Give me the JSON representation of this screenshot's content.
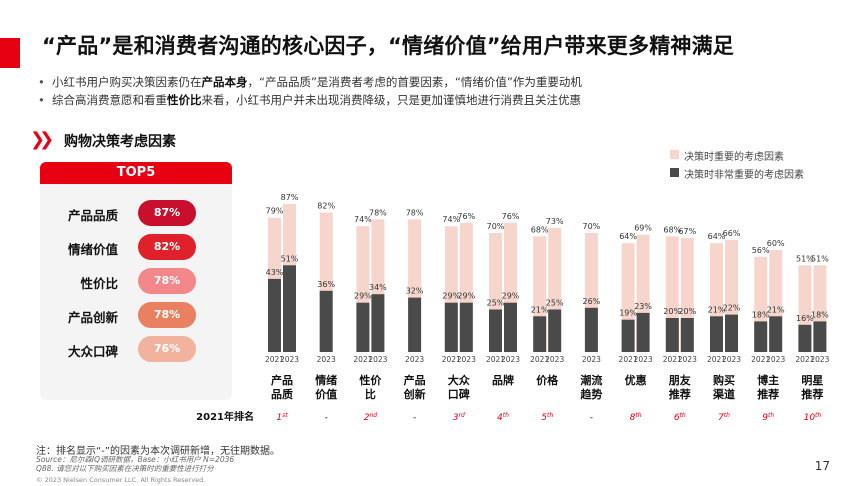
{
  "title": "“产品”是和消费者沟通的核心因子，“情绪价值”给用户带来更多精神满足",
  "bullets": [
    {
      "pre": "小红书用户购买决策因素仍在",
      "bold": "产品本身",
      "post": "，“产品品质”是消费者考虑的首要因素，“情绪价值”作为重要动机"
    },
    {
      "pre": "综合高消费意愿和看重",
      "bold": "性价比",
      "post": "来看，小红书用户并未出现消费降级，只是更加谨慎地进行消费且关注优惠"
    }
  ],
  "section_title": "购物决策考虑因素",
  "top5": {
    "header": "TOP5",
    "items": [
      {
        "label": "产品品质",
        "value": "87%",
        "color": "#c8102e"
      },
      {
        "label": "情绪价值",
        "value": "82%",
        "color": "#e0202a"
      },
      {
        "label": "性价比",
        "value": "78%",
        "color": "#f4878a"
      },
      {
        "label": "产品创新",
        "value": "78%",
        "color": "#e9805f"
      },
      {
        "label": "大众口碑",
        "value": "76%",
        "color": "#f2b39e"
      }
    ]
  },
  "legend": [
    {
      "label": "决策时重要的考虑因素",
      "color": "#f6d6cc"
    },
    {
      "label": "决策时非常重要的考虑因素",
      "color": "#4a4a4a"
    }
  ],
  "rank_row_label": "2021年排名",
  "footnotes": {
    "note": "注：排名显示“-”的因素为本次调研新增，无往期数据。",
    "source": "Source：尼尔森IQ调研数据，Base：小红书用户 N=2036",
    "q": "Q88. 请您对以下购买因素在决策时的重要性进行打分",
    "copyright": "© 2023 Nielsen Consumer LLC. All Rights Reserved."
  },
  "page_number": "17",
  "chart_data": {
    "type": "bar",
    "ylim": [
      0,
      100
    ],
    "series": [
      {
        "name": "决策时重要的考虑因素",
        "color": "#f6d6cc"
      },
      {
        "name": "决策时非常重要的考虑因素",
        "color": "#4a4a4a"
      }
    ],
    "categories": [
      {
        "label": [
          "产品",
          "品质"
        ],
        "rank": "1",
        "rank_suffix": "st",
        "bars": [
          {
            "year": "2021",
            "important": 79,
            "very": 43
          },
          {
            "year": "2023",
            "important": 87,
            "very": 51
          }
        ]
      },
      {
        "label": [
          "情绪",
          "价值"
        ],
        "rank": "-",
        "rank_suffix": "",
        "bars": [
          {
            "year": "2023",
            "important": 82,
            "very": 36
          }
        ]
      },
      {
        "label": [
          "性价",
          "比"
        ],
        "rank": "2",
        "rank_suffix": "nd",
        "bars": [
          {
            "year": "2021",
            "important": 74,
            "very": 29
          },
          {
            "year": "2023",
            "important": 78,
            "very": 34
          }
        ]
      },
      {
        "label": [
          "产品",
          "创新"
        ],
        "rank": "-",
        "rank_suffix": "",
        "bars": [
          {
            "year": "2023",
            "important": 78,
            "very": 32
          }
        ]
      },
      {
        "label": [
          "大众",
          "口碑"
        ],
        "rank": "3",
        "rank_suffix": "rd",
        "bars": [
          {
            "year": "2021",
            "important": 74,
            "very": 29
          },
          {
            "year": "2023",
            "important": 76,
            "very": 29
          }
        ]
      },
      {
        "label": [
          "品牌"
        ],
        "rank": "4",
        "rank_suffix": "th",
        "bars": [
          {
            "year": "2021",
            "important": 70,
            "very": 25
          },
          {
            "year": "2023",
            "important": 76,
            "very": 29
          }
        ]
      },
      {
        "label": [
          "价格"
        ],
        "rank": "5",
        "rank_suffix": "th",
        "bars": [
          {
            "year": "2021",
            "important": 68,
            "very": 21
          },
          {
            "year": "2023",
            "important": 73,
            "very": 25
          }
        ]
      },
      {
        "label": [
          "潮流",
          "趋势"
        ],
        "rank": "-",
        "rank_suffix": "",
        "bars": [
          {
            "year": "2023",
            "important": 70,
            "very": 26
          }
        ]
      },
      {
        "label": [
          "优惠"
        ],
        "rank": "8",
        "rank_suffix": "th",
        "bars": [
          {
            "year": "2021",
            "important": 64,
            "very": 19
          },
          {
            "year": "2023",
            "important": 69,
            "very": 23
          }
        ]
      },
      {
        "label": [
          "朋友",
          "推荐"
        ],
        "rank": "6",
        "rank_suffix": "th",
        "bars": [
          {
            "year": "2021",
            "important": 68,
            "very": 20
          },
          {
            "year": "2023",
            "important": 67,
            "very": 20
          }
        ]
      },
      {
        "label": [
          "购买",
          "渠道"
        ],
        "rank": "7",
        "rank_suffix": "th",
        "bars": [
          {
            "year": "2021",
            "important": 64,
            "very": 21
          },
          {
            "year": "2023",
            "important": 66,
            "very": 22
          }
        ]
      },
      {
        "label": [
          "博主",
          "推荐"
        ],
        "rank": "9",
        "rank_suffix": "th",
        "bars": [
          {
            "year": "2021",
            "important": 56,
            "very": 18
          },
          {
            "year": "2023",
            "important": 60,
            "very": 21
          }
        ]
      },
      {
        "label": [
          "明星",
          "推荐"
        ],
        "rank": "10",
        "rank_suffix": "th",
        "bars": [
          {
            "year": "2021",
            "important": 51,
            "very": 16
          },
          {
            "year": "2023",
            "important": 51,
            "very": 18
          }
        ]
      }
    ]
  }
}
